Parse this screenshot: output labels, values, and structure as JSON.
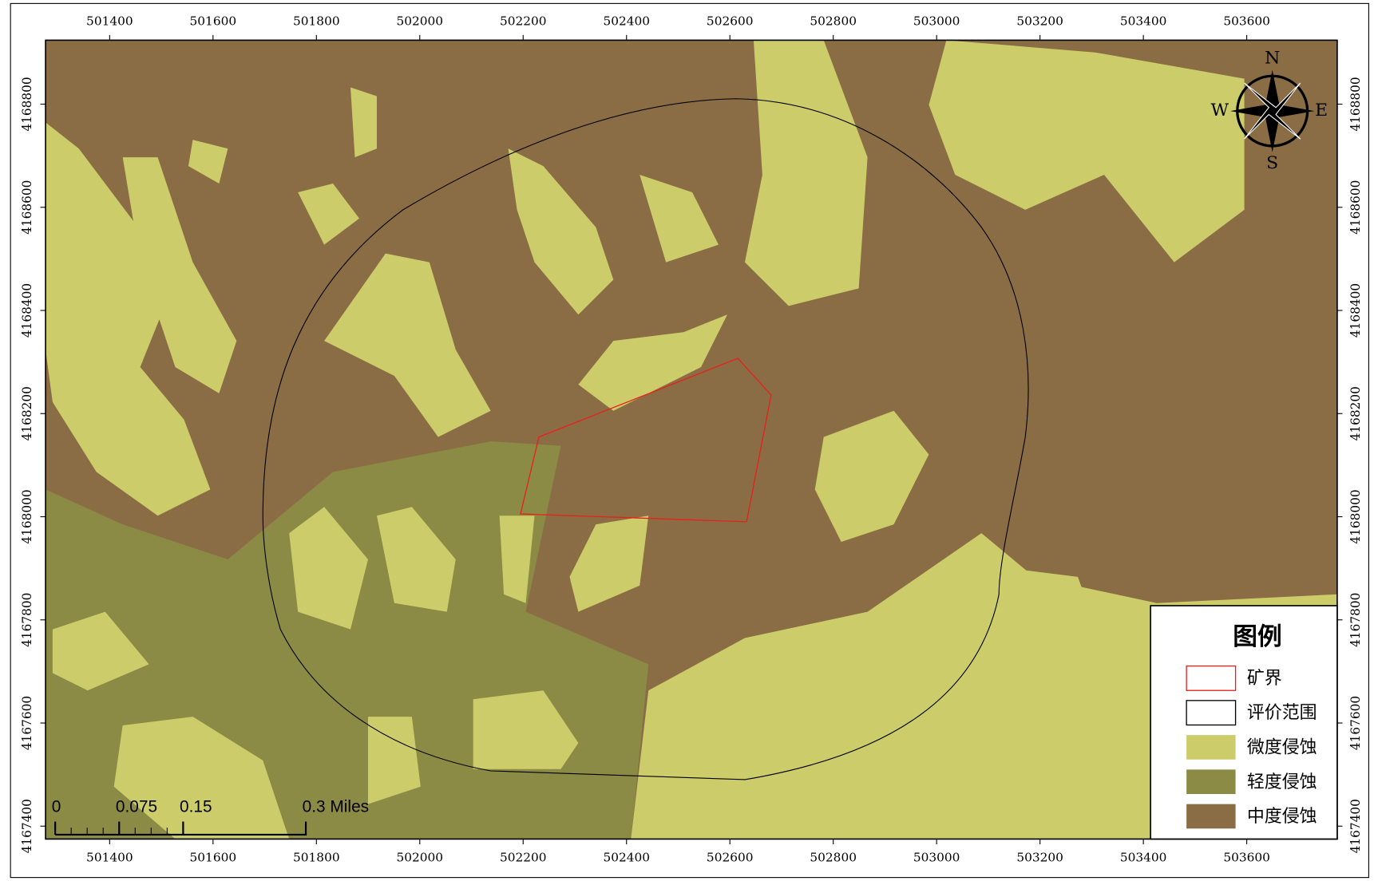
{
  "map": {
    "xlim": [
      501276,
      503775
    ],
    "ylim": [
      4167375,
      4168924
    ],
    "xticks": [
      501400,
      501600,
      501800,
      502000,
      502200,
      502400,
      502600,
      502800,
      503000,
      503200,
      503400,
      503600
    ],
    "yticks": [
      4167400,
      4167600,
      4167800,
      4168000,
      4168200,
      4168400,
      4168600,
      4168800
    ],
    "compass": {
      "north": "N",
      "south": "S",
      "east": "E",
      "west": "W"
    },
    "scale_bar": {
      "labels": [
        "0",
        "0.075",
        "0.15",
        "0.3 Miles"
      ]
    },
    "legend": {
      "title": "图例",
      "items": [
        {
          "label": "矿界",
          "color": "#e8201c",
          "kind": "outline"
        },
        {
          "label": "评价范围",
          "color": "#000000",
          "kind": "outline"
        },
        {
          "label": "微度侵蚀",
          "color": "#cccd6a",
          "kind": "fill"
        },
        {
          "label": "轻度侵蚀",
          "color": "#8b8b45",
          "kind": "fill"
        },
        {
          "label": "中度侵蚀",
          "color": "#8a6d45",
          "kind": "fill"
        }
      ]
    }
  }
}
